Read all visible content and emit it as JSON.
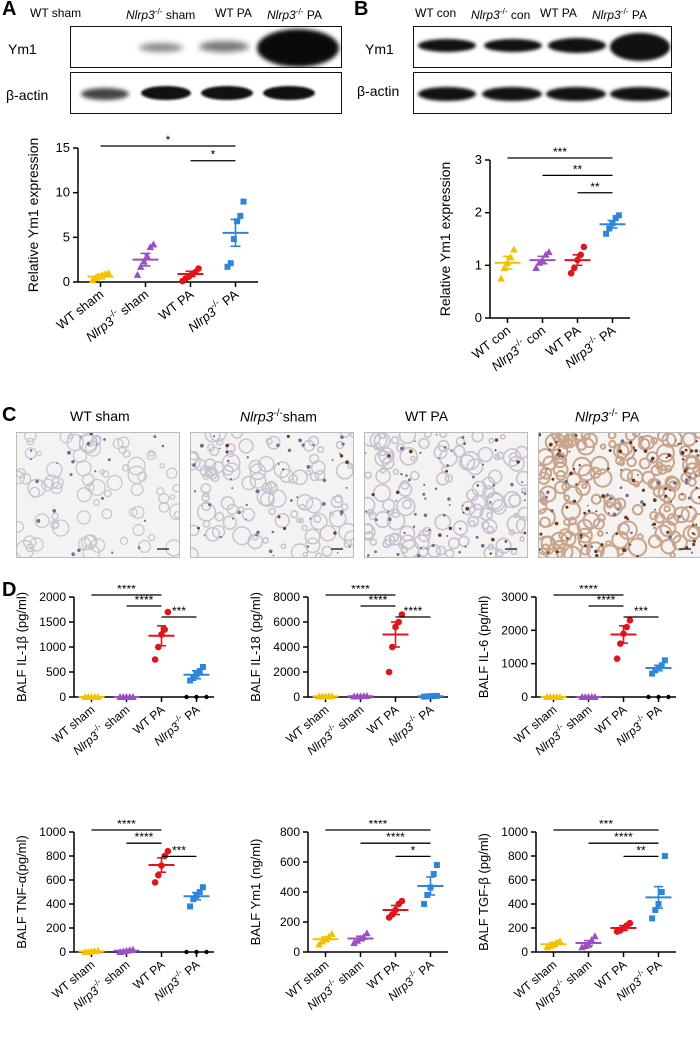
{
  "panels": {
    "A": {
      "label": "A",
      "lane_labels": [
        {
          "pre": "WT sham",
          "it": "",
          "sup": "",
          "post": ""
        },
        {
          "pre": "",
          "it": "Nlrp3",
          "sup": "-/-",
          "post": " sham"
        },
        {
          "pre": "WT PA",
          "it": "",
          "sup": "",
          "post": ""
        },
        {
          "pre": "",
          "it": "Nlrp3",
          "sup": "-/-",
          "post": " PA"
        }
      ],
      "blot_rows": [
        "Ym1",
        "β-actin"
      ]
    },
    "B": {
      "label": "B",
      "lane_labels": [
        {
          "pre": "WT con",
          "it": "",
          "sup": "",
          "post": ""
        },
        {
          "pre": "",
          "it": "Nlrp3",
          "sup": "-/-",
          "post": " con"
        },
        {
          "pre": "WT PA",
          "it": "",
          "sup": "",
          "post": ""
        },
        {
          "pre": "",
          "it": "Nlrp3",
          "sup": "-/-",
          "post": " PA"
        }
      ],
      "blot_rows": [
        "Ym1",
        "β-actin"
      ]
    },
    "C": {
      "label": "C",
      "titles": [
        {
          "pre": "WT sham",
          "it": "",
          "sup": "",
          "post": ""
        },
        {
          "pre": "",
          "it": "Nlrp3",
          "sup": "-/-",
          "post": "sham"
        },
        {
          "pre": "WT PA",
          "it": "",
          "sup": "",
          "post": ""
        },
        {
          "pre": "",
          "it": "Nlrp3",
          "sup": "-/-",
          "post": " PA"
        }
      ]
    },
    "D": {
      "label": "D"
    }
  },
  "colors": {
    "wt_sham": "#f2c200",
    "ko_sham": "#9b4fc2",
    "wt_pa": "#e0151b",
    "ko_pa": "#2e86d8"
  },
  "chart_data": [
    {
      "id": "A",
      "type": "scatter",
      "ylabel": "Relative Ym1 expression",
      "categories": [
        {
          "pre": "WT sham",
          "it": "",
          "sup": "",
          "post": ""
        },
        {
          "pre": "",
          "it": "Nlrp3",
          "sup": "-/-",
          "post": " sham"
        },
        {
          "pre": "WT PA",
          "it": "",
          "sup": "",
          "post": ""
        },
        {
          "pre": "",
          "it": "Nlrp3",
          "sup": "-/-",
          "post": " PA"
        }
      ],
      "ylim": [
        0,
        15
      ],
      "yticks": [
        0,
        5,
        10,
        15
      ],
      "means": [
        0.6,
        2.5,
        0.9,
        5.5
      ],
      "sems": [
        0.25,
        0.7,
        0.3,
        1.5
      ],
      "points": [
        [
          0.2,
          0.4,
          0.6,
          0.8,
          0.9,
          1.0
        ],
        [
          0.8,
          1.7,
          2.3,
          2.9,
          3.9,
          4.2
        ],
        [
          0.1,
          0.4,
          0.6,
          0.9,
          1.1,
          1.5
        ],
        [
          1.7,
          2.1,
          4.8,
          6.8,
          7.4,
          9.0
        ]
      ],
      "significance": [
        {
          "from": 0,
          "to": 3,
          "label": "*"
        },
        {
          "from": 2,
          "to": 3,
          "label": "*"
        }
      ]
    },
    {
      "id": "B",
      "type": "scatter",
      "ylabel": "Relative Ym1 expression",
      "categories": [
        {
          "pre": "WT con",
          "it": "",
          "sup": "",
          "post": ""
        },
        {
          "pre": "",
          "it": "Nlrp3",
          "sup": "-/-",
          "post": " con"
        },
        {
          "pre": "WT PA",
          "it": "",
          "sup": "",
          "post": ""
        },
        {
          "pre": "",
          "it": "Nlrp3",
          "sup": "-/-",
          "post": " PA"
        }
      ],
      "ylim": [
        0,
        3
      ],
      "yticks": [
        0,
        1,
        2,
        3
      ],
      "means": [
        1.05,
        1.1,
        1.1,
        1.78
      ],
      "sems": [
        0.12,
        0.07,
        0.1,
        0.07
      ],
      "points": [
        [
          0.75,
          0.95,
          1.05,
          1.15,
          1.3
        ],
        [
          0.95,
          1.05,
          1.1,
          1.2,
          1.25
        ],
        [
          0.85,
          0.95,
          1.1,
          1.2,
          1.35
        ],
        [
          1.6,
          1.7,
          1.8,
          1.9,
          1.95
        ]
      ],
      "significance": [
        {
          "from": 0,
          "to": 3,
          "label": "***"
        },
        {
          "from": 1,
          "to": 3,
          "label": "**"
        },
        {
          "from": 2,
          "to": 3,
          "label": "**"
        }
      ]
    },
    {
      "id": "D1",
      "type": "scatter",
      "ylabel": "BALF IL-1β (pg/ml)",
      "categories": [
        {
          "pre": "WT sham",
          "it": "",
          "sup": "",
          "post": ""
        },
        {
          "pre": "",
          "it": "Nlrp3",
          "sup": "-/-",
          "post": " sham"
        },
        {
          "pre": "WT PA",
          "it": "",
          "sup": "",
          "post": ""
        },
        {
          "pre": "",
          "it": "Nlrp3",
          "sup": "-/-",
          "post": " PA"
        }
      ],
      "ylim": [
        0,
        2000
      ],
      "yticks": [
        0,
        500,
        1000,
        1500,
        2000
      ],
      "means": [
        0,
        0,
        1225,
        445
      ],
      "sems": [
        0,
        0,
        200,
        80
      ],
      "points": [
        [
          0,
          0,
          0,
          0,
          0
        ],
        [
          0,
          0,
          0,
          0,
          0
        ],
        [
          750,
          1000,
          1250,
          1350,
          1700
        ],
        [
          330,
          380,
          450,
          520,
          600
        ]
      ],
      "significance": [
        {
          "from": 0,
          "to": 2,
          "label": "****"
        },
        {
          "from": 1,
          "to": 2,
          "label": "****"
        },
        {
          "from": 2,
          "to": 3,
          "label": "***"
        }
      ],
      "zero_axis_dots": [
        3
      ]
    },
    {
      "id": "D2",
      "type": "scatter",
      "ylabel": "BALF IL-18 (pg/ml)",
      "categories": [
        {
          "pre": "WT sham",
          "it": "",
          "sup": "",
          "post": ""
        },
        {
          "pre": "",
          "it": "Nlrp3",
          "sup": "-/-",
          "post": " sham"
        },
        {
          "pre": "WT PA",
          "it": "",
          "sup": "",
          "post": ""
        },
        {
          "pre": "",
          "it": "Nlrp3",
          "sup": "-/-",
          "post": " PA"
        }
      ],
      "ylim": [
        0,
        8000
      ],
      "yticks": [
        0,
        2000,
        4000,
        6000,
        8000
      ],
      "means": [
        50,
        60,
        5000,
        60
      ],
      "sems": [
        20,
        20,
        1000,
        20
      ],
      "points": [
        [
          30,
          40,
          50,
          60,
          70
        ],
        [
          40,
          50,
          60,
          70,
          80
        ],
        [
          2000,
          4000,
          5600,
          6000,
          6600
        ],
        [
          30,
          50,
          60,
          70,
          90
        ]
      ],
      "significance": [
        {
          "from": 0,
          "to": 2,
          "label": "****"
        },
        {
          "from": 1,
          "to": 2,
          "label": "****"
        },
        {
          "from": 2,
          "to": 3,
          "label": "****"
        }
      ]
    },
    {
      "id": "D3",
      "type": "scatter",
      "ylabel": "BALF IL-6 (pg/ml)",
      "categories": [
        {
          "pre": "WT sham",
          "it": "",
          "sup": "",
          "post": ""
        },
        {
          "pre": "",
          "it": "Nlrp3",
          "sup": "-/-",
          "post": " sham"
        },
        {
          "pre": "WT PA",
          "it": "",
          "sup": "",
          "post": ""
        },
        {
          "pre": "",
          "it": "Nlrp3",
          "sup": "-/-",
          "post": " PA"
        }
      ],
      "ylim": [
        0,
        3000
      ],
      "yticks": [
        0,
        1000,
        2000,
        3000
      ],
      "means": [
        0,
        0,
        1875,
        870
      ],
      "sems": [
        0,
        0,
        260,
        80
      ],
      "points": [
        [
          0,
          0,
          0,
          0,
          0
        ],
        [
          0,
          0,
          0,
          0,
          0
        ],
        [
          1150,
          1600,
          1900,
          2100,
          2300
        ],
        [
          700,
          800,
          860,
          950,
          1100
        ]
      ],
      "significance": [
        {
          "from": 0,
          "to": 2,
          "label": "****"
        },
        {
          "from": 1,
          "to": 2,
          "label": "****"
        },
        {
          "from": 2,
          "to": 3,
          "label": "***"
        }
      ],
      "zero_axis_dots": [
        3
      ]
    },
    {
      "id": "D4",
      "type": "scatter",
      "ylabel": "BALF TNF-α(pg/ml)",
      "categories": [
        {
          "pre": "WT sham",
          "it": "",
          "sup": "",
          "post": ""
        },
        {
          "pre": "",
          "it": "Nlrp3",
          "sup": "-/-",
          "post": " sham"
        },
        {
          "pre": "WT PA",
          "it": "",
          "sup": "",
          "post": ""
        },
        {
          "pre": "",
          "it": "Nlrp3",
          "sup": "-/-",
          "post": " PA"
        }
      ],
      "ylim": [
        0,
        1000
      ],
      "yticks": [
        0,
        200,
        400,
        600,
        800,
        1000
      ],
      "means": [
        5,
        10,
        725,
        465
      ],
      "sems": [
        3,
        4,
        60,
        30
      ],
      "points": [
        [
          0,
          0,
          5,
          8,
          10
        ],
        [
          0,
          5,
          10,
          15,
          20
        ],
        [
          580,
          640,
          720,
          800,
          840
        ],
        [
          380,
          440,
          470,
          500,
          540
        ]
      ],
      "significance": [
        {
          "from": 0,
          "to": 2,
          "label": "****"
        },
        {
          "from": 1,
          "to": 2,
          "label": "****"
        },
        {
          "from": 2,
          "to": 3,
          "label": "***"
        }
      ],
      "zero_axis_dots": [
        3
      ]
    },
    {
      "id": "D5",
      "type": "scatter",
      "ylabel": "BALF Ym1 (ng/ml)",
      "categories": [
        {
          "pre": "WT sham",
          "it": "",
          "sup": "",
          "post": ""
        },
        {
          "pre": "",
          "it": "Nlrp3",
          "sup": "-/-",
          "post": " sham"
        },
        {
          "pre": "WT PA",
          "it": "",
          "sup": "",
          "post": ""
        },
        {
          "pre": "",
          "it": "Nlrp3",
          "sup": "-/-",
          "post": " PA"
        }
      ],
      "ylim": [
        0,
        800
      ],
      "yticks": [
        0,
        200,
        400,
        600,
        800
      ],
      "means": [
        85,
        90,
        280,
        440
      ],
      "sems": [
        15,
        15,
        30,
        60
      ],
      "points": [
        [
          50,
          70,
          85,
          100,
          120
        ],
        [
          60,
          75,
          90,
          100,
          125
        ],
        [
          230,
          250,
          280,
          320,
          340
        ],
        [
          320,
          380,
          430,
          520,
          580
        ]
      ],
      "significance": [
        {
          "from": 0,
          "to": 3,
          "label": "****"
        },
        {
          "from": 1,
          "to": 3,
          "label": "****"
        },
        {
          "from": 2,
          "to": 3,
          "label": "*"
        }
      ]
    },
    {
      "id": "D6",
      "type": "scatter",
      "ylabel": "BALF TGF-β (pg/ml)",
      "categories": [
        {
          "pre": "WT sham",
          "it": "",
          "sup": "",
          "post": ""
        },
        {
          "pre": "",
          "it": "Nlrp3",
          "sup": "-/-",
          "post": " sham"
        },
        {
          "pre": "WT PA",
          "it": "",
          "sup": "",
          "post": ""
        },
        {
          "pre": "",
          "it": "Nlrp3",
          "sup": "-/-",
          "post": " PA"
        }
      ],
      "ylim": [
        0,
        1000
      ],
      "yticks": [
        0,
        200,
        400,
        600,
        800,
        1000
      ],
      "means": [
        65,
        75,
        200,
        455
      ],
      "sems": [
        15,
        20,
        20,
        90
      ],
      "points": [
        [
          40,
          50,
          60,
          80,
          90
        ],
        [
          40,
          50,
          60,
          100,
          130
        ],
        [
          170,
          180,
          200,
          220,
          240
        ],
        [
          280,
          350,
          400,
          500,
          800
        ]
      ],
      "significance": [
        {
          "from": 0,
          "to": 3,
          "label": "***"
        },
        {
          "from": 1,
          "to": 3,
          "label": "****"
        },
        {
          "from": 2,
          "to": 3,
          "label": "**"
        }
      ]
    }
  ]
}
